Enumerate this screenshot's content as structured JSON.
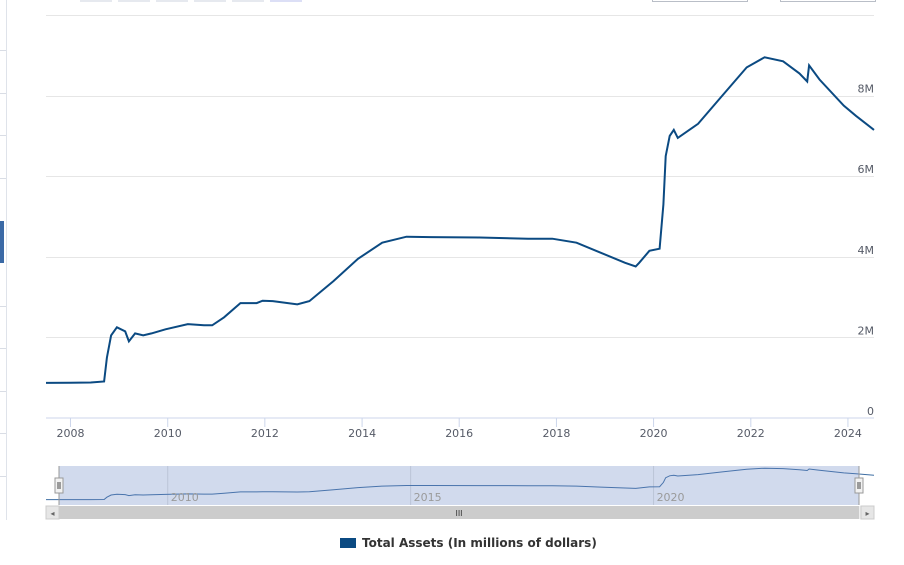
{
  "chart_data": {
    "type": "line",
    "title": "",
    "xlabel": "",
    "ylabel": "",
    "x_ticks": [
      "2008",
      "2010",
      "2012",
      "2014",
      "2016",
      "2018",
      "2020",
      "2022",
      "2024"
    ],
    "y_ticks": [
      "0",
      "2M",
      "4M",
      "6M",
      "8M"
    ],
    "xlim": [
      "2007-07-01",
      "2024-07-15"
    ],
    "ylim": [
      0,
      10000000
    ],
    "grid": true,
    "legend_position": "bottom-center",
    "series": [
      {
        "name": "Total Assets (In millions of dollars)",
        "color": "#0b4a82",
        "points": [
          [
            "2007-07-01",
            870000
          ],
          [
            "2008-01-01",
            875000
          ],
          [
            "2008-06-01",
            880000
          ],
          [
            "2008-09-10",
            905000
          ],
          [
            "2008-10-01",
            1500000
          ],
          [
            "2008-11-01",
            2050000
          ],
          [
            "2008-12-15",
            2250000
          ],
          [
            "2009-02-15",
            2150000
          ],
          [
            "2009-03-15",
            1900000
          ],
          [
            "2009-05-01",
            2100000
          ],
          [
            "2009-07-01",
            2050000
          ],
          [
            "2009-09-01",
            2100000
          ],
          [
            "2009-12-15",
            2200000
          ],
          [
            "2010-06-01",
            2330000
          ],
          [
            "2010-10-01",
            2300000
          ],
          [
            "2010-12-01",
            2300000
          ],
          [
            "2011-03-01",
            2500000
          ],
          [
            "2011-07-01",
            2850000
          ],
          [
            "2011-11-01",
            2850000
          ],
          [
            "2011-12-15",
            2910000
          ],
          [
            "2012-03-01",
            2900000
          ],
          [
            "2012-09-01",
            2820000
          ],
          [
            "2012-12-01",
            2900000
          ],
          [
            "2013-06-01",
            3400000
          ],
          [
            "2013-12-01",
            3950000
          ],
          [
            "2014-06-01",
            4350000
          ],
          [
            "2014-12-01",
            4500000
          ],
          [
            "2015-06-01",
            4490000
          ],
          [
            "2016-06-01",
            4480000
          ],
          [
            "2017-06-01",
            4450000
          ],
          [
            "2017-12-01",
            4450000
          ],
          [
            "2018-06-01",
            4350000
          ],
          [
            "2018-12-01",
            4100000
          ],
          [
            "2019-06-01",
            3850000
          ],
          [
            "2019-08-20",
            3760000
          ],
          [
            "2019-09-15",
            3850000
          ],
          [
            "2019-12-01",
            4150000
          ],
          [
            "2020-02-15",
            4200000
          ],
          [
            "2020-03-15",
            5300000
          ],
          [
            "2020-04-01",
            6500000
          ],
          [
            "2020-05-01",
            7000000
          ],
          [
            "2020-06-01",
            7150000
          ],
          [
            "2020-07-01",
            6950000
          ],
          [
            "2020-12-01",
            7300000
          ],
          [
            "2021-06-01",
            8000000
          ],
          [
            "2021-12-01",
            8700000
          ],
          [
            "2022-04-15",
            8950000
          ],
          [
            "2022-09-01",
            8850000
          ],
          [
            "2023-01-01",
            8550000
          ],
          [
            "2023-03-01",
            8350000
          ],
          [
            "2023-03-15",
            8750000
          ],
          [
            "2023-06-01",
            8400000
          ],
          [
            "2023-12-01",
            7750000
          ],
          [
            "2024-03-01",
            7500000
          ],
          [
            "2024-07-15",
            7150000
          ]
        ]
      }
    ]
  },
  "navigator": {
    "labels": [
      "2010",
      "2015",
      "2020"
    ],
    "scroll_grip": "III",
    "left_arrow": "◂",
    "right_arrow": "▸"
  },
  "legend": {
    "label": "Total Assets (In millions of dollars)",
    "swatch_color": "#0b4a82"
  }
}
